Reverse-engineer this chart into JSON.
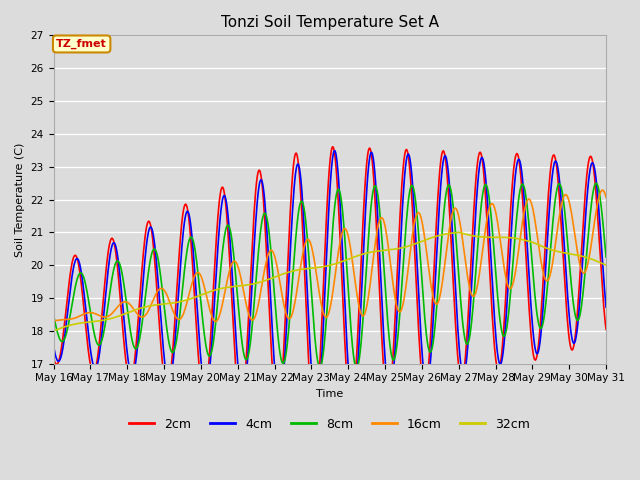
{
  "title": "Tonzi Soil Temperature Set A",
  "xlabel": "Time",
  "ylabel": "Soil Temperature (C)",
  "ylim": [
    17.0,
    27.0
  ],
  "yticks": [
    17.0,
    18.0,
    19.0,
    20.0,
    21.0,
    22.0,
    23.0,
    24.0,
    25.0,
    26.0,
    27.0
  ],
  "xtick_labels": [
    "May 16",
    "May 17",
    "May 18",
    "May 19",
    "May 20",
    "May 21",
    "May 22",
    "May 23",
    "May 24",
    "May 25",
    "May 26",
    "May 27",
    "May 28",
    "May 29",
    "May 30",
    "May 31"
  ],
  "legend_labels": [
    "2cm",
    "4cm",
    "8cm",
    "16cm",
    "32cm"
  ],
  "legend_colors": [
    "#ff0000",
    "#0000ff",
    "#00bb00",
    "#ff8800",
    "#cccc00"
  ],
  "annotation_text": "TZ_fmet",
  "annotation_color": "#cc0000",
  "annotation_bg": "#ffffcc",
  "annotation_border": "#cc8800",
  "bg_color": "#dcdcdc",
  "plot_bg_color": "#dcdcdc",
  "line_width": 1.2,
  "title_fontsize": 11,
  "axis_fontsize": 8,
  "tick_fontsize": 7.5
}
